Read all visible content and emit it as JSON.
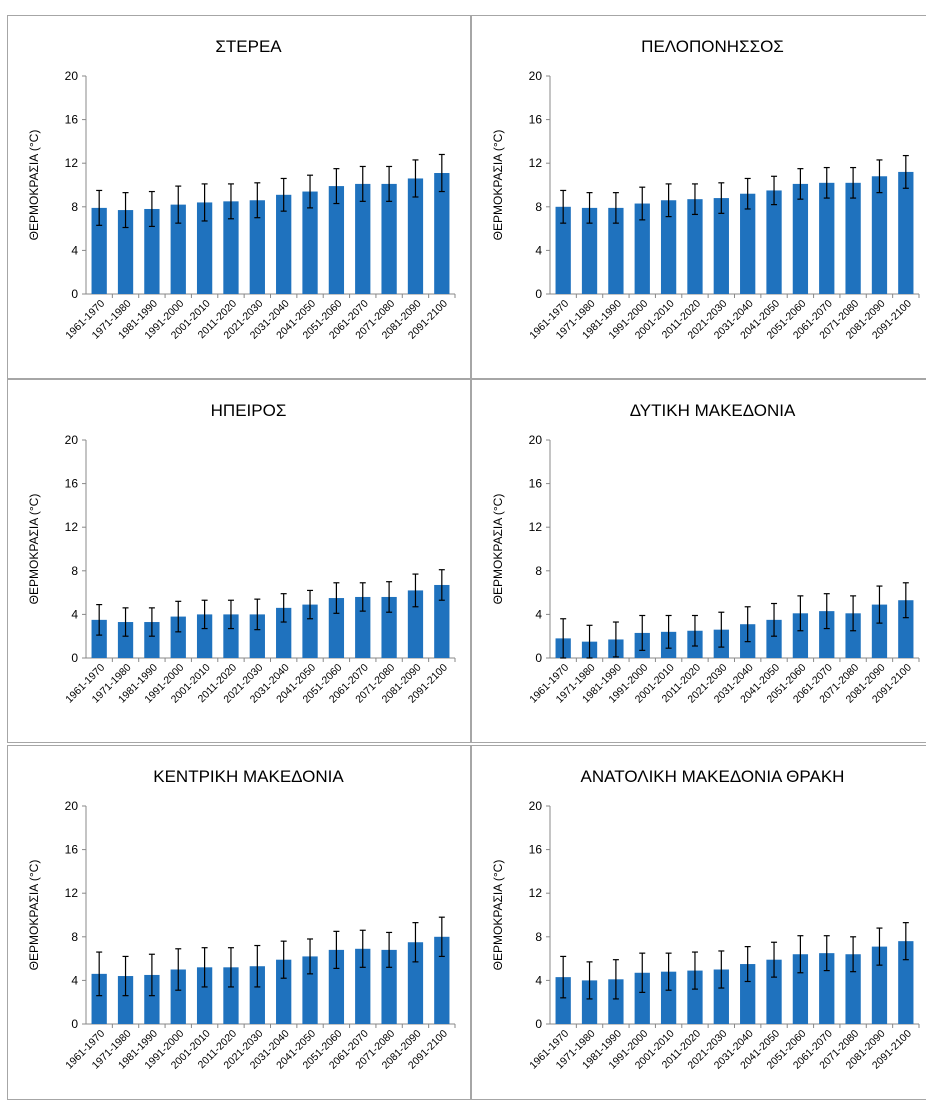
{
  "page": {
    "background": "#ffffff"
  },
  "style": {
    "bar_color": "#1f72be",
    "error_color": "#000000",
    "grid_color": "#d9d9d9",
    "axis_color": "#888888"
  },
  "chart_data": [
    {
      "type": "bar",
      "title": "ΣΤΕΡΕΑ",
      "ylabel": "ΘΕΡΜΟΚΡΑΣΙΑ (°C)",
      "xlabel": "",
      "ylim": [
        0,
        20
      ],
      "yticks": [
        0,
        4,
        8,
        12,
        16,
        20
      ],
      "grid": false,
      "categories": [
        "1961-1970",
        "1971-1980",
        "1981-1990",
        "1991-2000",
        "2001-2010",
        "2011-2020",
        "2021-2030",
        "2031-2040",
        "2041-2050",
        "2051-2060",
        "2061-2070",
        "2071-2080",
        "2081-2090",
        "2091-2100"
      ],
      "values": [
        7.9,
        7.7,
        7.8,
        8.2,
        8.4,
        8.5,
        8.6,
        9.1,
        9.4,
        9.9,
        10.1,
        10.1,
        10.6,
        11.1
      ],
      "error": [
        1.6,
        1.6,
        1.6,
        1.7,
        1.7,
        1.6,
        1.6,
        1.5,
        1.5,
        1.6,
        1.6,
        1.6,
        1.7,
        1.7
      ]
    },
    {
      "type": "bar",
      "title": "ΠΕΛΟΠΟΝΗΣΣΟΣ",
      "ylabel": "ΘΕΡΜΟΚΡΑΣΙΑ (°C)",
      "xlabel": "",
      "ylim": [
        0,
        20
      ],
      "yticks": [
        0,
        4,
        8,
        12,
        16,
        20
      ],
      "grid": false,
      "categories": [
        "1961-1970",
        "1971-1980",
        "1981-1990",
        "1991-2000",
        "2001-2010",
        "2011-2020",
        "2021-2030",
        "2031-2040",
        "2041-2050",
        "2051-2060",
        "2061-2070",
        "2071-2080",
        "2081-2090",
        "2091-2100"
      ],
      "values": [
        8.0,
        7.9,
        7.9,
        8.3,
        8.6,
        8.7,
        8.8,
        9.2,
        9.5,
        10.1,
        10.2,
        10.2,
        10.8,
        11.2
      ],
      "error": [
        1.5,
        1.4,
        1.4,
        1.5,
        1.5,
        1.4,
        1.4,
        1.4,
        1.3,
        1.4,
        1.4,
        1.4,
        1.5,
        1.5
      ]
    },
    {
      "type": "bar",
      "title": "ΗΠΕΙΡΟΣ",
      "ylabel": "ΘΕΡΜΟΚΡΑΣΙΑ (°C)",
      "xlabel": "",
      "ylim": [
        0,
        20
      ],
      "yticks": [
        0,
        4,
        8,
        12,
        16,
        20
      ],
      "grid": false,
      "categories": [
        "1961-1970",
        "1971-1980",
        "1981-1990",
        "1991-2000",
        "2001-2010",
        "2011-2020",
        "2021-2030",
        "2031-2040",
        "2041-2050",
        "2051-2060",
        "2061-2070",
        "2071-2080",
        "2081-2090",
        "2091-2100"
      ],
      "values": [
        3.5,
        3.3,
        3.3,
        3.8,
        4.0,
        4.0,
        4.0,
        4.6,
        4.9,
        5.5,
        5.6,
        5.6,
        6.2,
        6.7
      ],
      "error": [
        1.4,
        1.3,
        1.3,
        1.4,
        1.3,
        1.3,
        1.4,
        1.3,
        1.3,
        1.4,
        1.3,
        1.4,
        1.5,
        1.4
      ]
    },
    {
      "type": "bar",
      "title": "ΔΥΤΙΚΗ ΜΑΚΕΔΟΝΙΑ",
      "ylabel": "ΘΕΡΜΟΚΡΑΣΙΑ (°C)",
      "xlabel": "",
      "ylim": [
        0,
        20
      ],
      "yticks": [
        0,
        4,
        8,
        12,
        16,
        20
      ],
      "grid": false,
      "categories": [
        "1961-1970",
        "1971-1980",
        "1981-1990",
        "1991-2000",
        "2001-2010",
        "2011-2020",
        "2021-2030",
        "2031-2040",
        "2041-2050",
        "2051-2060",
        "2061-2070",
        "2071-2080",
        "2081-2090",
        "2091-2100"
      ],
      "values": [
        1.8,
        1.5,
        1.7,
        2.3,
        2.4,
        2.5,
        2.6,
        3.1,
        3.5,
        4.1,
        4.3,
        4.1,
        4.9,
        5.3
      ],
      "error": [
        1.8,
        1.5,
        1.6,
        1.6,
        1.5,
        1.4,
        1.6,
        1.6,
        1.5,
        1.6,
        1.6,
        1.6,
        1.7,
        1.6
      ]
    },
    {
      "type": "bar",
      "title": "ΚΕΝΤΡΙΚΗ ΜΑΚΕΔΟΝΙΑ",
      "ylabel": "ΘΕΡΜΟΚΡΑΣΙΑ (°C)",
      "xlabel": "",
      "ylim": [
        0,
        20
      ],
      "yticks": [
        0,
        4,
        8,
        12,
        16,
        20
      ],
      "grid": false,
      "categories": [
        "1961-1970",
        "1971-1980",
        "1981-1990",
        "1991-2000",
        "2001-2010",
        "2011-2020",
        "2021-2030",
        "2031-2040",
        "2041-2050",
        "2051-2060",
        "2061-2070",
        "2071-2080",
        "2081-2090",
        "2091-2100"
      ],
      "values": [
        4.6,
        4.4,
        4.5,
        5.0,
        5.2,
        5.2,
        5.3,
        5.9,
        6.2,
        6.8,
        6.9,
        6.8,
        7.5,
        8.0
      ],
      "error": [
        2.0,
        1.8,
        1.9,
        1.9,
        1.8,
        1.8,
        1.9,
        1.7,
        1.6,
        1.7,
        1.7,
        1.6,
        1.8,
        1.8
      ]
    },
    {
      "type": "bar",
      "title": "ΑΝΑΤΟΛΙΚΗ ΜΑΚΕΔΟΝΙΑ ΘΡΑΚΗ",
      "ylabel": "ΘΕΡΜΟΚΡΑΣΙΑ (°C)",
      "xlabel": "",
      "ylim": [
        0,
        20
      ],
      "yticks": [
        0,
        4,
        8,
        12,
        16,
        20
      ],
      "grid": false,
      "categories": [
        "1961-1970",
        "1971-1980",
        "1981-1990",
        "1991-2000",
        "2001-2010",
        "2011-2020",
        "2021-2030",
        "2031-2040",
        "2041-2050",
        "2051-2060",
        "2061-2070",
        "2071-2080",
        "2081-2090",
        "2091-2100"
      ],
      "values": [
        4.3,
        4.0,
        4.1,
        4.7,
        4.8,
        4.9,
        5.0,
        5.5,
        5.9,
        6.4,
        6.5,
        6.4,
        7.1,
        7.6
      ],
      "error": [
        1.9,
        1.7,
        1.8,
        1.8,
        1.7,
        1.7,
        1.7,
        1.6,
        1.6,
        1.7,
        1.6,
        1.6,
        1.7,
        1.7
      ]
    }
  ]
}
